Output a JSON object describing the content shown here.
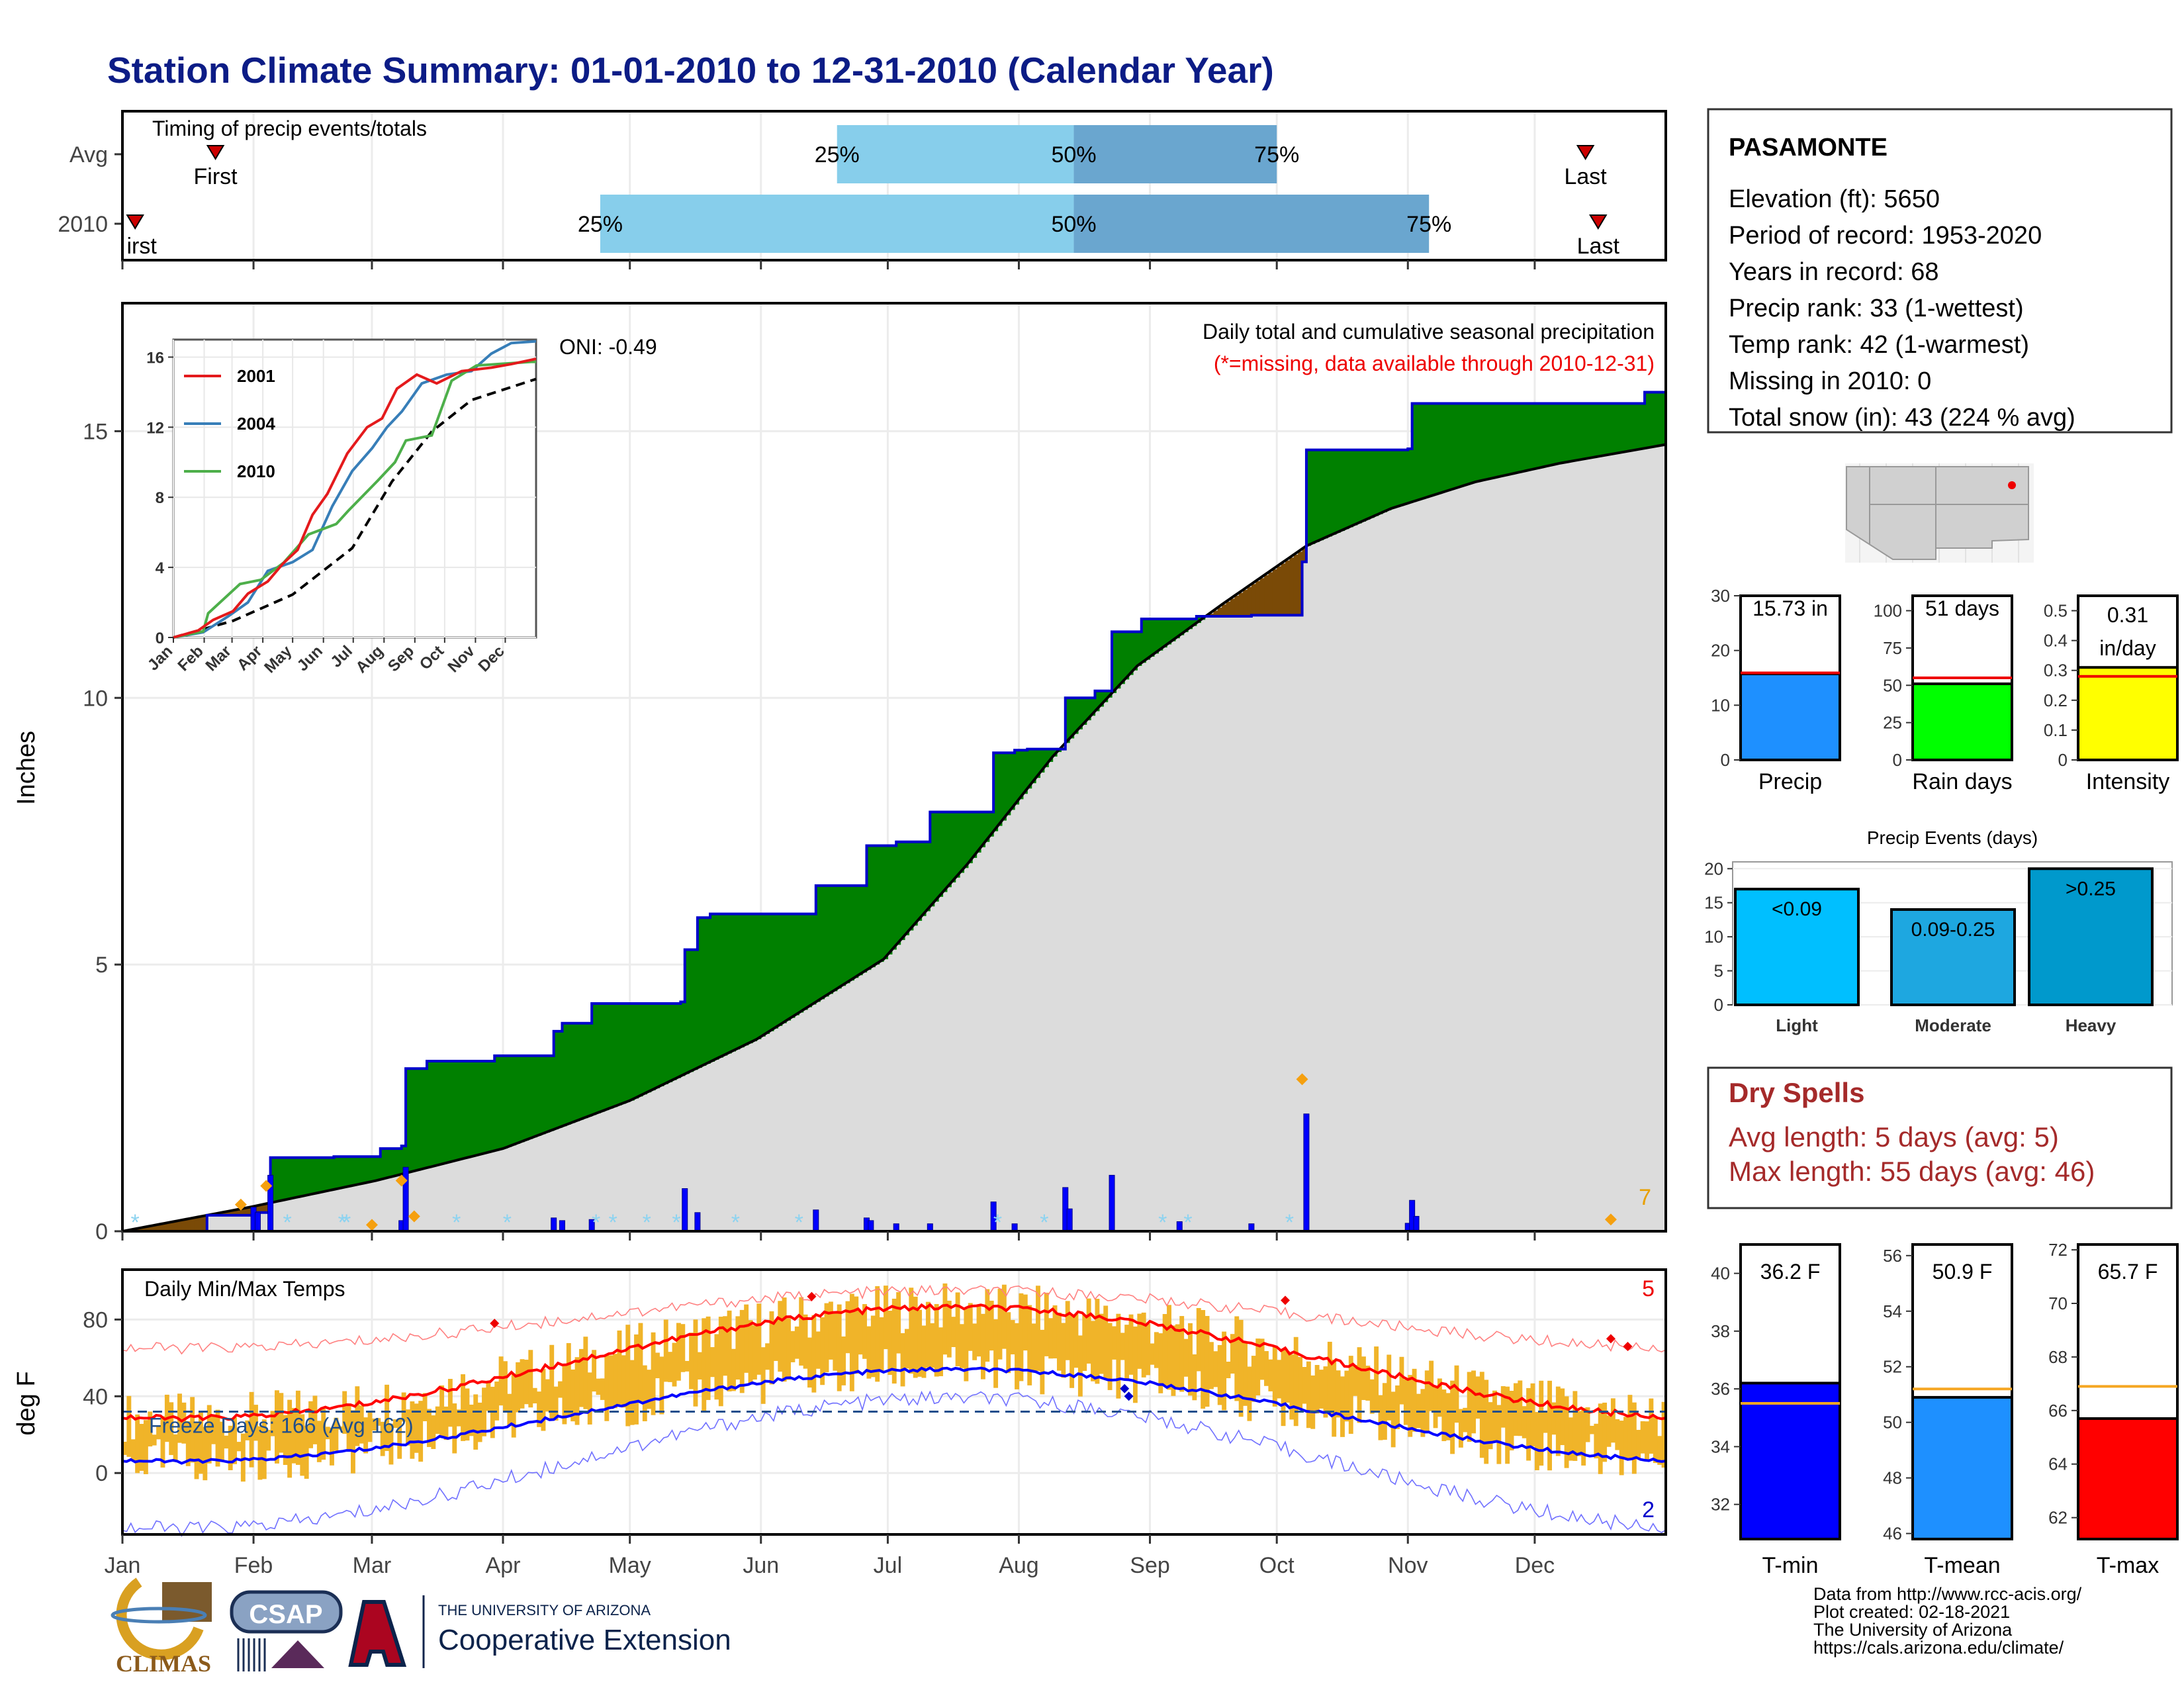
{
  "title": "Station Climate Summary: 01-01-2010 to 12-31-2010 (Calendar Year)",
  "colors": {
    "title": "#0c1c86",
    "green": "#008000",
    "brown": "#7a4a07",
    "grey": "#dcdcdc",
    "blue": "#0000ff",
    "lightblue": "#87ceeb",
    "midblue": "#6aa6cf",
    "orange": "#f0b429",
    "red": "#ff0000",
    "darkred": "#a52a2a",
    "yellow": "#ffff00",
    "lime": "#00ff00",
    "dodger": "#1e90ff"
  },
  "months": [
    "Jan",
    "Feb",
    "Mar",
    "Apr",
    "May",
    "Jun",
    "Jul",
    "Aug",
    "Sep",
    "Oct",
    "Nov",
    "Dec"
  ],
  "timing": {
    "label": "Timing of precip events/totals",
    "rows": [
      {
        "name": "Avg",
        "first_day": 22,
        "p25": 169,
        "p50": 225,
        "p75": 273,
        "last_day": 346
      },
      {
        "name": "2010",
        "first_day": 3,
        "p25": 113,
        "p50": 225,
        "p75": 309,
        "last_day": 349
      }
    ],
    "first_label": "First",
    "first_label_2010": "irst",
    "last_label": "Last",
    "p25_label": "25%",
    "p50_label": "50%",
    "p75_label": "75%"
  },
  "precip": {
    "ylabel": "Inches",
    "yticks": [
      0,
      5,
      10,
      15
    ],
    "ylim": [
      0,
      17.4
    ],
    "title": "Daily total and cumulative seasonal precipitation",
    "subtitle": "(*=missing, data available through 2010-12-31)",
    "oni": "ONI: -0.49",
    "right_count": "7",
    "cum_2010_steps": [
      [
        0,
        0
      ],
      [
        20,
        0.3
      ],
      [
        31,
        0.35
      ],
      [
        35,
        1.38
      ],
      [
        50,
        1.4
      ],
      [
        61,
        1.55
      ],
      [
        66,
        1.6
      ],
      [
        67,
        3.05
      ],
      [
        72,
        3.19
      ],
      [
        88,
        3.29
      ],
      [
        102,
        3.75
      ],
      [
        104,
        3.9
      ],
      [
        111,
        4.27
      ],
      [
        132,
        4.3
      ],
      [
        133,
        5.28
      ],
      [
        136,
        5.88
      ],
      [
        139,
        5.95
      ],
      [
        151,
        5.95
      ],
      [
        164,
        6.48
      ],
      [
        175,
        6.48
      ],
      [
        176,
        7.23
      ],
      [
        183,
        7.3
      ],
      [
        191,
        7.86
      ],
      [
        206,
        8.97
      ],
      [
        211,
        9.02
      ],
      [
        214,
        9.04
      ],
      [
        223,
        10.0
      ],
      [
        230,
        10.13
      ],
      [
        234,
        11.24
      ],
      [
        241,
        11.48
      ],
      [
        254,
        11.53
      ],
      [
        260,
        11.53
      ],
      [
        267,
        11.55
      ],
      [
        279,
        12.55
      ],
      [
        280,
        14.65
      ],
      [
        304,
        14.67
      ],
      [
        305,
        15.52
      ],
      [
        355,
        15.52
      ],
      [
        360,
        15.73
      ],
      [
        365,
        15.73
      ]
    ],
    "avg_cum": [
      [
        0,
        0
      ],
      [
        30,
        0.45
      ],
      [
        60,
        0.95
      ],
      [
        90,
        1.55
      ],
      [
        120,
        2.45
      ],
      [
        150,
        3.6
      ],
      [
        180,
        5.1
      ],
      [
        200,
        6.9
      ],
      [
        220,
        8.9
      ],
      [
        240,
        10.6
      ],
      [
        260,
        11.75
      ],
      [
        280,
        12.85
      ],
      [
        300,
        13.55
      ],
      [
        320,
        14.05
      ],
      [
        340,
        14.4
      ],
      [
        365,
        14.75
      ]
    ],
    "daily_bars": [
      [
        31,
        0.45
      ],
      [
        32,
        0.35
      ],
      [
        35,
        1.05
      ],
      [
        66,
        0.2
      ],
      [
        67,
        1.2
      ],
      [
        102,
        0.25
      ],
      [
        104,
        0.2
      ],
      [
        111,
        0.22
      ],
      [
        133,
        0.8
      ],
      [
        136,
        0.35
      ],
      [
        164,
        0.4
      ],
      [
        176,
        0.25
      ],
      [
        177,
        0.2
      ],
      [
        183,
        0.14
      ],
      [
        191,
        0.14
      ],
      [
        206,
        0.55
      ],
      [
        211,
        0.14
      ],
      [
        223,
        0.82
      ],
      [
        224,
        0.42
      ],
      [
        234,
        1.05
      ],
      [
        250,
        0.18
      ],
      [
        267,
        0.14
      ],
      [
        280,
        2.2
      ],
      [
        304,
        0.15
      ],
      [
        305,
        0.58
      ],
      [
        306,
        0.28
      ]
    ],
    "diamonds": [
      [
        28,
        0.5
      ],
      [
        34,
        0.85
      ],
      [
        59,
        0.12
      ],
      [
        66,
        0.95
      ],
      [
        69,
        0.28
      ],
      [
        279,
        2.85
      ],
      [
        352,
        0.22
      ]
    ],
    "snow_days": [
      3,
      39,
      52,
      53,
      79,
      91,
      112,
      116,
      124,
      131,
      145,
      160,
      207,
      218,
      246,
      252,
      276
    ]
  },
  "inset": {
    "yticks": [
      0,
      4,
      8,
      12,
      16
    ],
    "legend": [
      "2001",
      "2004",
      "2010"
    ],
    "series_colors": [
      "#e41a1c",
      "#377eb8",
      "#4daf4a"
    ],
    "s2001": [
      [
        0,
        0
      ],
      [
        25,
        0.4
      ],
      [
        40,
        1.0
      ],
      [
        60,
        1.5
      ],
      [
        75,
        2.5
      ],
      [
        95,
        3.2
      ],
      [
        110,
        4.2
      ],
      [
        125,
        5.0
      ],
      [
        140,
        7.0
      ],
      [
        155,
        8.2
      ],
      [
        175,
        10.5
      ],
      [
        195,
        12.0
      ],
      [
        210,
        12.5
      ],
      [
        225,
        14.2
      ],
      [
        245,
        15.0
      ],
      [
        265,
        14.5
      ],
      [
        290,
        15.2
      ],
      [
        320,
        15.4
      ],
      [
        340,
        15.6
      ],
      [
        365,
        15.9
      ]
    ],
    "s2004": [
      [
        0,
        0
      ],
      [
        30,
        0.3
      ],
      [
        55,
        1.2
      ],
      [
        75,
        2.0
      ],
      [
        95,
        3.8
      ],
      [
        120,
        4.3
      ],
      [
        140,
        5.0
      ],
      [
        160,
        7.5
      ],
      [
        180,
        9.5
      ],
      [
        200,
        10.8
      ],
      [
        215,
        12.0
      ],
      [
        230,
        12.9
      ],
      [
        250,
        14.5
      ],
      [
        275,
        15.0
      ],
      [
        300,
        15.2
      ],
      [
        320,
        16.2
      ],
      [
        340,
        16.8
      ],
      [
        365,
        16.9
      ]
    ],
    "s2010": [
      [
        0,
        0
      ],
      [
        30,
        0.35
      ],
      [
        35,
        1.38
      ],
      [
        67,
        3.05
      ],
      [
        88,
        3.29
      ],
      [
        111,
        4.27
      ],
      [
        136,
        5.88
      ],
      [
        164,
        6.48
      ],
      [
        176,
        7.23
      ],
      [
        206,
        8.97
      ],
      [
        223,
        10.0
      ],
      [
        234,
        11.24
      ],
      [
        260,
        11.53
      ],
      [
        280,
        14.65
      ],
      [
        305,
        15.52
      ],
      [
        360,
        15.73
      ],
      [
        365,
        15.73
      ]
    ],
    "avg": [
      [
        0,
        0
      ],
      [
        60,
        0.95
      ],
      [
        120,
        2.45
      ],
      [
        180,
        5.1
      ],
      [
        220,
        8.9
      ],
      [
        260,
        11.75
      ],
      [
        300,
        13.55
      ],
      [
        365,
        14.75
      ]
    ]
  },
  "temps": {
    "ylabel": "deg F",
    "title": "Daily Min/Max Temps",
    "yticks": [
      0,
      40,
      80
    ],
    "ylim": [
      -32,
      106
    ],
    "freeze_label": "Freeze Days: 166 (Avg 162)",
    "freeze_line": 32,
    "red_count": "5",
    "blue_count": "2"
  },
  "station": {
    "name": "PASAMONTE",
    "lines": [
      "Elevation (ft): 5650",
      "Period of record: 1953-2020",
      "Years in record: 68",
      "Precip rank: 33 (1-wettest)",
      "Temp rank: 42 (1-warmest)",
      "Missing in 2010: 0",
      "Total snow (in): 43 (224 % avg)"
    ]
  },
  "gauges": [
    {
      "name": "Precip",
      "value": 15.73,
      "avg": 15.9,
      "label": "15.73 in",
      "ymin": 0,
      "ymax": 30,
      "ticks": [
        0,
        10,
        20,
        30
      ],
      "color": "#1e90ff"
    },
    {
      "name": "Rain days",
      "value": 51,
      "avg": 55,
      "label": "51 days",
      "ymin": 0,
      "ymax": 110,
      "ticks": [
        0,
        25,
        50,
        75,
        100
      ],
      "color": "#00ff00"
    },
    {
      "name": "Intensity",
      "value": 0.31,
      "avg": 0.28,
      "label": "0.31 in/day",
      "ymin": 0,
      "ymax": 0.55,
      "ticks": [
        0.0,
        0.1,
        0.2,
        0.3,
        0.4,
        0.5
      ],
      "color": "#ffff00"
    }
  ],
  "events": {
    "title": "Precip Events (days)",
    "categories": [
      "Light",
      "Moderate",
      "Heavy"
    ],
    "labels": [
      "<0.09",
      "0.09-0.25",
      ">0.25"
    ],
    "values": [
      17,
      14,
      20
    ],
    "yticks": [
      0,
      5,
      10,
      15,
      20
    ],
    "colors": [
      "#00bfff",
      "#1ea7e0",
      "#0099cc"
    ]
  },
  "dry": {
    "title": "Dry Spells",
    "avg": "Avg length: 5 days (avg: 5)",
    "max": "Max length: 55 days (avg: 46)"
  },
  "tgauges": [
    {
      "name": "T-min",
      "value": 36.2,
      "avg": 35.5,
      "label": "36.2 F",
      "ymin": 30.8,
      "ymax": 41,
      "ticks": [
        32,
        34,
        36,
        38,
        40
      ],
      "color": "#0000ff"
    },
    {
      "name": "T-mean",
      "value": 50.9,
      "avg": 51.2,
      "label": "50.9 F",
      "ymin": 45.8,
      "ymax": 56.4,
      "ticks": [
        46,
        48,
        50,
        52,
        54,
        56
      ],
      "color": "#1e90ff"
    },
    {
      "name": "T-max",
      "value": 65.7,
      "avg": 66.9,
      "label": "65.7 F",
      "ymin": 61.2,
      "ymax": 72.2,
      "ticks": [
        62,
        64,
        66,
        68,
        70,
        72
      ],
      "color": "#ff0000"
    }
  ],
  "footer": {
    "lines": [
      "Data from http://www.rcc-acis.org/",
      "Plot created: 02-18-2021",
      "The University of Arizona",
      "https://cals.arizona.edu/climate/"
    ],
    "climas": "CLIMAS",
    "csap": "CSAP",
    "ua_small": "THE UNIVERSITY OF ARIZONA",
    "ua_big": "Cooperative Extension"
  }
}
